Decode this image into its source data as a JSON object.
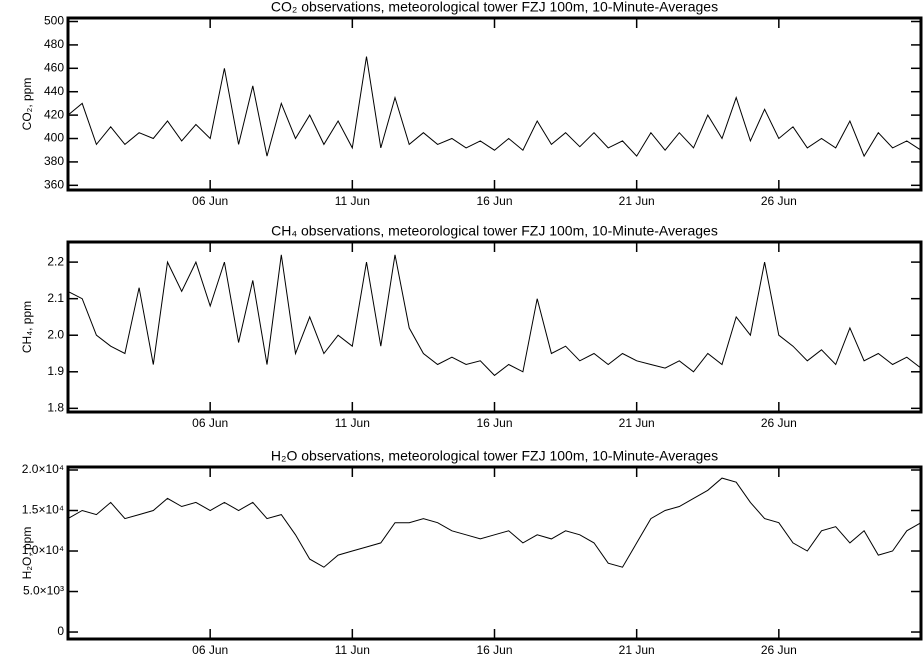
{
  "chart_data": [
    {
      "type": "line",
      "title": "CO₂ observations, meteorological tower FZJ 100m, 10-Minute-Averages",
      "y_label": "CO₂, ppm",
      "x": [
        1,
        1.5,
        2,
        2.5,
        3,
        3.5,
        4,
        4.5,
        5,
        5.5,
        6,
        6.5,
        7,
        7.5,
        8,
        8.5,
        9,
        9.5,
        10,
        10.5,
        11,
        11.5,
        12,
        12.5,
        13,
        13.5,
        14,
        14.5,
        15,
        15.5,
        16,
        16.5,
        17,
        17.5,
        18,
        18.5,
        19,
        19.5,
        20,
        20.5,
        21,
        21.5,
        22,
        22.5,
        23,
        23.5,
        24,
        24.5,
        25,
        25.5,
        26,
        26.5,
        27,
        27.5,
        28,
        28.5,
        29,
        29.5,
        30,
        30.5,
        31
      ],
      "color": "#000000",
      "values": [
        420,
        430,
        395,
        410,
        395,
        405,
        400,
        415,
        398,
        412,
        400,
        460,
        395,
        445,
        385,
        430,
        400,
        420,
        395,
        415,
        392,
        470,
        392,
        435,
        395,
        405,
        395,
        400,
        392,
        398,
        390,
        400,
        390,
        415,
        395,
        405,
        393,
        405,
        392,
        398,
        385,
        405,
        390,
        405,
        392,
        420,
        400,
        435,
        398,
        425,
        400,
        410,
        392,
        400,
        392,
        415,
        385,
        405,
        392,
        398,
        390
      ],
      "xlim": [
        1,
        31
      ],
      "xticks": [
        {
          "value": 6,
          "label": "06 Jun"
        },
        {
          "value": 11,
          "label": "11 Jun"
        },
        {
          "value": 16,
          "label": "16 Jun"
        },
        {
          "value": 21,
          "label": "21 Jun"
        },
        {
          "value": 26,
          "label": "26 Jun"
        }
      ],
      "ylim": [
        356,
        503
      ],
      "yticks": [
        360,
        380,
        400,
        420,
        440,
        460,
        480,
        500
      ]
    },
    {
      "type": "line",
      "title": "CH₄ observations, meteorological tower FZJ 100m, 10-Minute-Averages",
      "y_label": "CH₄, ppm",
      "x": [
        1,
        1.5,
        2,
        2.5,
        3,
        3.5,
        4,
        4.5,
        5,
        5.5,
        6,
        6.5,
        7,
        7.5,
        8,
        8.5,
        9,
        9.5,
        10,
        10.5,
        11,
        11.5,
        12,
        12.5,
        13,
        13.5,
        14,
        14.5,
        15,
        15.5,
        16,
        16.5,
        17,
        17.5,
        18,
        18.5,
        19,
        19.5,
        20,
        20.5,
        21,
        21.5,
        22,
        22.5,
        23,
        23.5,
        24,
        24.5,
        25,
        25.5,
        26,
        26.5,
        27,
        27.5,
        28,
        28.5,
        29,
        29.5,
        30,
        30.5,
        31
      ],
      "color": "#000000",
      "values": [
        2.12,
        2.1,
        2.0,
        1.97,
        1.95,
        2.13,
        1.92,
        2.2,
        2.12,
        2.2,
        2.08,
        2.2,
        1.98,
        2.15,
        1.92,
        2.22,
        1.95,
        2.05,
        1.95,
        2.0,
        1.97,
        2.2,
        1.97,
        2.22,
        2.02,
        1.95,
        1.92,
        1.94,
        1.92,
        1.93,
        1.89,
        1.92,
        1.9,
        2.1,
        1.95,
        1.97,
        1.93,
        1.95,
        1.92,
        1.95,
        1.93,
        1.92,
        1.91,
        1.93,
        1.9,
        1.95,
        1.92,
        2.05,
        2.0,
        2.2,
        2.0,
        1.97,
        1.93,
        1.96,
        1.92,
        2.02,
        1.93,
        1.95,
        1.92,
        1.94,
        1.91
      ],
      "xlim": [
        1,
        31
      ],
      "xticks": [
        {
          "value": 6,
          "label": "06 Jun"
        },
        {
          "value": 11,
          "label": "11 Jun"
        },
        {
          "value": 16,
          "label": "16 Jun"
        },
        {
          "value": 21,
          "label": "21 Jun"
        },
        {
          "value": 26,
          "label": "26 Jun"
        }
      ],
      "ylim": [
        1.79,
        2.255
      ],
      "yticks": [
        1.8,
        1.9,
        {
          "value": 2,
          "label": "2.0"
        },
        2.1,
        2.2
      ]
    },
    {
      "type": "line",
      "title": "H₂O observations, meteorological tower FZJ 100m, 10-Minute-Averages",
      "y_label": "H₂O, ppm",
      "x": [
        1,
        1.5,
        2,
        2.5,
        3,
        3.5,
        4,
        4.5,
        5,
        5.5,
        6,
        6.5,
        7,
        7.5,
        8,
        8.5,
        9,
        9.5,
        10,
        10.5,
        11,
        11.5,
        12,
        12.5,
        13,
        13.5,
        14,
        14.5,
        15,
        15.5,
        16,
        16.5,
        17,
        17.5,
        18,
        18.5,
        19,
        19.5,
        20,
        20.5,
        21,
        21.5,
        22,
        22.5,
        23,
        23.5,
        24,
        24.5,
        25,
        25.5,
        26,
        26.5,
        27,
        27.5,
        28,
        28.5,
        29,
        29.5,
        30,
        30.5,
        31
      ],
      "color": "#000000",
      "values": [
        14000,
        15000,
        14500,
        16000,
        14000,
        14500,
        15000,
        16500,
        15500,
        16000,
        15000,
        16000,
        15000,
        16000,
        14000,
        14500,
        12000,
        9000,
        8000,
        9500,
        10000,
        10500,
        11000,
        13500,
        13500,
        14000,
        13500,
        12500,
        12000,
        11500,
        12000,
        12500,
        11000,
        12000,
        11500,
        12500,
        12000,
        11000,
        8500,
        8000,
        11000,
        14000,
        15000,
        15500,
        16500,
        17500,
        19000,
        18500,
        16000,
        14000,
        13500,
        11000,
        10000,
        12500,
        13000,
        11000,
        12500,
        9500,
        10000,
        12500,
        13500
      ],
      "xlim": [
        1,
        31
      ],
      "xticks": [
        {
          "value": 6,
          "label": "06 Jun"
        },
        {
          "value": 11,
          "label": "11 Jun"
        },
        {
          "value": 16,
          "label": "16 Jun"
        },
        {
          "value": 21,
          "label": "21 Jun"
        },
        {
          "value": 26,
          "label": "26 Jun"
        }
      ],
      "ylim": [
        -860,
        20370
      ],
      "yticks": [
        0,
        {
          "value": 5000,
          "label": "5.0×10³"
        },
        {
          "value": 10000,
          "label": "1.0×10⁴"
        },
        {
          "value": 15000,
          "label": "1.5×10⁴"
        },
        {
          "value": 20000,
          "label": "2.0×10⁴"
        }
      ]
    }
  ]
}
